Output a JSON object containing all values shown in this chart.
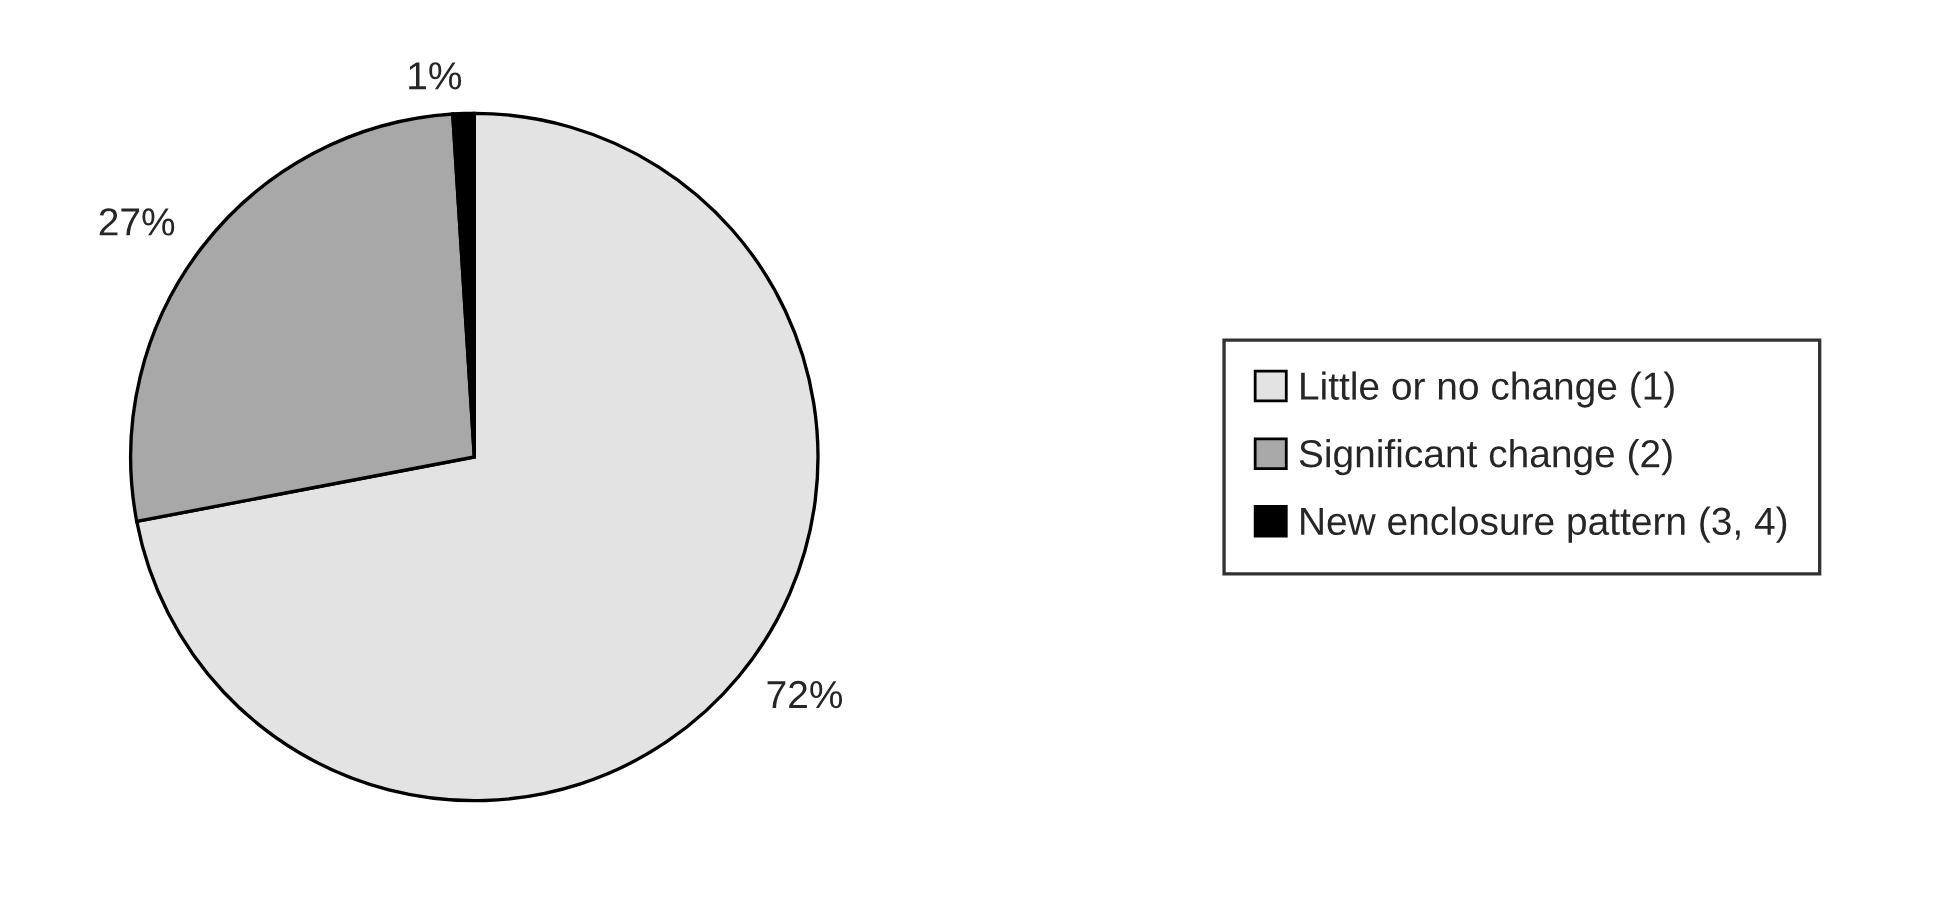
{
  "chart_data": {
    "type": "pie",
    "categories": [
      "Little or no change (1)",
      "Significant change (2)",
      "New enclosure pattern (3, 4)"
    ],
    "values": [
      72,
      27,
      1
    ],
    "value_labels": [
      "72%",
      "27%",
      "1%"
    ],
    "colors": [
      "#e3e3e3",
      "#a8a8a8",
      "#000000"
    ],
    "legend": "right"
  }
}
